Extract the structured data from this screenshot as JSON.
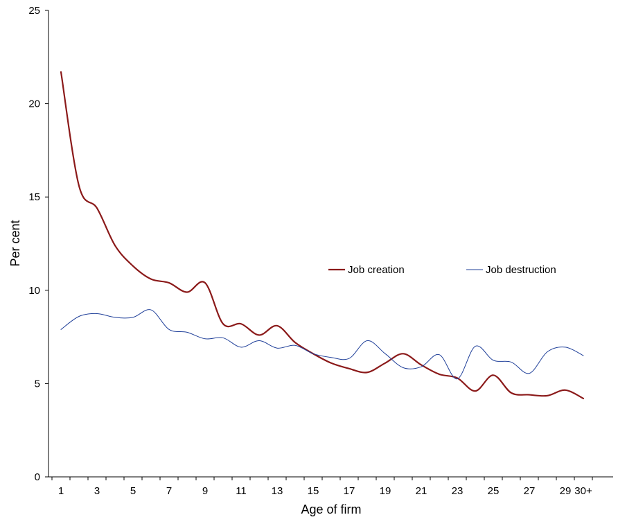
{
  "chart_data": {
    "type": "line",
    "title": "",
    "xlabel": "Age of firm",
    "ylabel": "Per cent",
    "ylim": [
      0,
      25
    ],
    "yticks": [
      0,
      5,
      10,
      15,
      20,
      25
    ],
    "categories": [
      "1",
      "2",
      "3",
      "4",
      "5",
      "6",
      "7",
      "8",
      "9",
      "10",
      "11",
      "12",
      "13",
      "14",
      "15",
      "16",
      "17",
      "18",
      "19",
      "20",
      "21",
      "22",
      "23",
      "24",
      "25",
      "26",
      "27",
      "28",
      "29",
      "30+"
    ],
    "xtick_labels": [
      "1",
      "3",
      "5",
      "7",
      "9",
      "11",
      "13",
      "15",
      "17",
      "19",
      "21",
      "23",
      "25",
      "27",
      "29",
      "30+"
    ],
    "xtick_positions": [
      "1",
      "3",
      "5",
      "7",
      "9",
      "11",
      "13",
      "15",
      "17",
      "19",
      "21",
      "23",
      "25",
      "27",
      "29",
      "30+"
    ],
    "grid": false,
    "legend_position": "right-middle",
    "series": [
      {
        "name": "Job creation",
        "color": "#8B1A1A",
        "values": [
          21.7,
          15.6,
          14.4,
          12.4,
          11.3,
          10.6,
          10.4,
          9.9,
          10.4,
          8.2,
          8.2,
          7.6,
          8.1,
          7.2,
          6.6,
          6.1,
          5.8,
          5.6,
          6.1,
          6.6,
          6.0,
          5.5,
          5.3,
          4.6,
          5.45,
          4.5,
          4.4,
          4.35,
          4.65,
          4.2
        ]
      },
      {
        "name": "Job destruction",
        "color": "#1F3F99",
        "values": [
          7.9,
          8.6,
          8.75,
          8.55,
          8.55,
          8.95,
          7.9,
          7.75,
          7.4,
          7.45,
          6.95,
          7.3,
          6.9,
          7.05,
          6.6,
          6.4,
          6.35,
          7.3,
          6.6,
          5.85,
          5.9,
          6.55,
          5.25,
          7.0,
          6.25,
          6.15,
          5.55,
          6.7,
          6.95,
          6.5
        ]
      }
    ]
  }
}
